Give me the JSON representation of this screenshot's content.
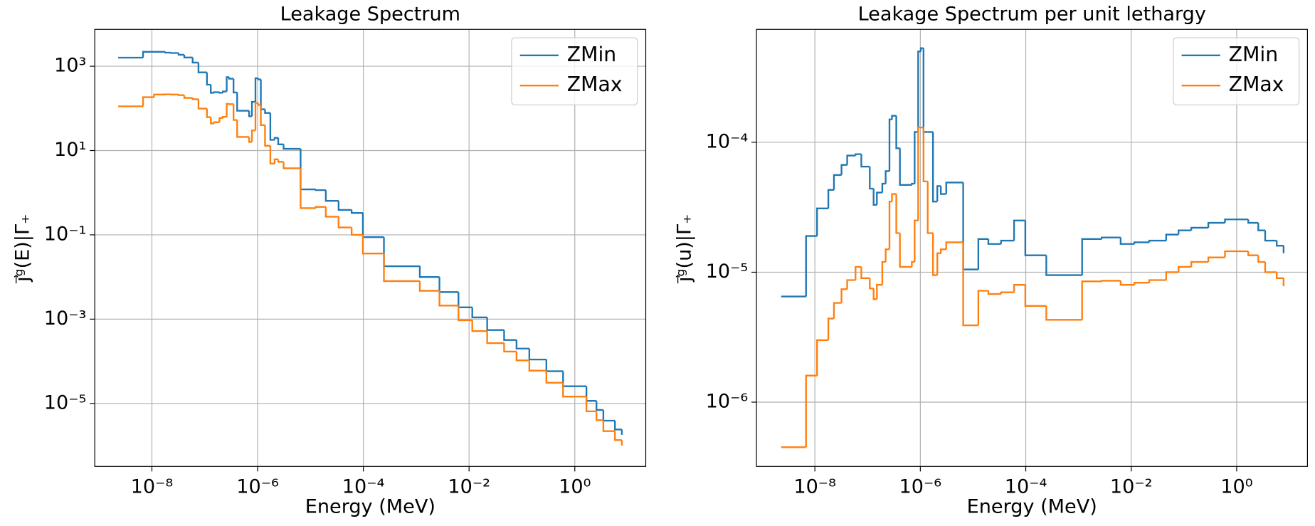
{
  "chart_data": [
    {
      "type": "step",
      "title": "Leakage Spectrum",
      "xlabel": "Energy (MeV)",
      "ylabel": "j⃗ᵍ(E)|Γ₊",
      "xscale": "log",
      "yscale": "log",
      "grid": true,
      "legend": "upper right",
      "xlim": [
        8.3e-10,
        22
      ],
      "ylim": [
        3.2e-07,
        7500
      ],
      "xticks": [
        {
          "value": 1e-08,
          "label": "10⁻⁸"
        },
        {
          "value": 1e-06,
          "label": "10⁻⁶"
        },
        {
          "value": 0.0001,
          "label": "10⁻⁴"
        },
        {
          "value": 0.01,
          "label": "10⁻²"
        },
        {
          "value": 1,
          "label": "10⁰"
        }
      ],
      "yticks": [
        {
          "value": 1e-05,
          "label": "10⁻⁵"
        },
        {
          "value": 0.001,
          "label": "10⁻³"
        },
        {
          "value": 0.1,
          "label": "10⁻¹"
        },
        {
          "value": 10,
          "label": "10¹"
        },
        {
          "value": 1000,
          "label": "10³"
        }
      ],
      "x": [
        2.3e-09,
        6.8e-09,
        1.1e-08,
        1.8e-08,
        2.3e-08,
        3.2e-08,
        4.1e-08,
        5.9e-08,
        7.6e-08,
        1.1e-07,
        1.3e-07,
        1.5e-07,
        1.9e-07,
        2.2e-07,
        2.6e-07,
        2.9e-07,
        3.5e-07,
        4.1e-07,
        6.9e-07,
        7.8e-07,
        9.1e-07,
        1.02e-06,
        1.15e-06,
        1.38e-06,
        1.74e-06,
        2.1e-06,
        2.45e-06,
        3.1e-06,
        6.5e-06,
        1.26e-05,
        1.95e-05,
        3.4e-05,
        6e-05,
        9.8e-05,
        0.000245,
        0.00117,
        0.00275,
        0.0063,
        0.0115,
        0.022,
        0.046,
        0.079,
        0.138,
        0.29,
        0.6,
        1.66,
        2.57,
        3.47,
        5.75,
        7.76
      ],
      "series": [
        {
          "name": "ZMin",
          "color": "#1f77b4",
          "values": [
            1600,
            2200,
            2200,
            2100,
            2060,
            1870,
            1610,
            1220,
            715,
            365,
            234,
            242,
            235,
            252,
            550,
            506,
            239,
            88,
            65,
            143,
            520,
            488,
            95,
            78,
            18,
            20,
            14,
            11,
            1.2,
            1.15,
            0.64,
            0.39,
            0.33,
            0.088,
            0.018,
            0.01,
            0.0044,
            0.0019,
            0.0011,
            0.00055,
            0.00032,
            0.0002,
            0.00011,
            5.8e-05,
            2.55e-05,
            1.15e-05,
            7e-06,
            3.9e-06,
            2.4e-06,
            1.8e-06
          ]
        },
        {
          "name": "ZMax",
          "color": "#ff7f0e",
          "values": [
            112,
            184,
            213,
            216,
            213,
            206,
            177,
            165,
            99,
            62,
            44,
            47,
            59,
            63,
            128,
            126,
            53,
            21,
            16,
            30,
            135,
            120,
            40,
            13,
            4.9,
            6.2,
            5.4,
            3.8,
            0.43,
            0.46,
            0.27,
            0.15,
            0.1,
            0.036,
            0.008,
            0.0047,
            0.0021,
            0.00094,
            0.00052,
            0.00027,
            0.00017,
            0.000105,
            6e-05,
            3.1e-05,
            1.45e-05,
            6.5e-06,
            4e-06,
            2.2e-06,
            1.35e-06,
            1e-06
          ]
        }
      ]
    },
    {
      "type": "step",
      "title": "Leakage Spectrum per unit lethargy",
      "xlabel": "Energy (MeV)",
      "ylabel": "j⃗ᵍ(u)|Γ₊",
      "xscale": "log",
      "yscale": "log",
      "grid": true,
      "legend": "upper right",
      "xlim": [
        7.8e-10,
        22
      ],
      "ylim": [
        3.2e-07,
        0.00074
      ],
      "xticks": [
        {
          "value": 1e-08,
          "label": "10⁻⁸"
        },
        {
          "value": 1e-06,
          "label": "10⁻⁶"
        },
        {
          "value": 0.0001,
          "label": "10⁻⁴"
        },
        {
          "value": 0.01,
          "label": "10⁻²"
        },
        {
          "value": 1,
          "label": "10⁰"
        }
      ],
      "yticks": [
        {
          "value": 1e-06,
          "label": "10⁻⁶"
        },
        {
          "value": 1e-05,
          "label": "10⁻⁵"
        },
        {
          "value": 0.0001,
          "label": "10⁻⁴"
        }
      ],
      "x": [
        2.3e-09,
        6.8e-09,
        1.1e-08,
        1.8e-08,
        2.3e-08,
        3.2e-08,
        4.1e-08,
        5.9e-08,
        7.6e-08,
        1.1e-07,
        1.3e-07,
        1.5e-07,
        1.9e-07,
        2.2e-07,
        2.6e-07,
        2.9e-07,
        3.5e-07,
        4.1e-07,
        6.9e-07,
        7.8e-07,
        9.1e-07,
        1.02e-06,
        1.15e-06,
        1.38e-06,
        1.74e-06,
        2.1e-06,
        2.45e-06,
        3.1e-06,
        6.5e-06,
        1.26e-05,
        1.95e-05,
        3.4e-05,
        6e-05,
        9.8e-05,
        0.000245,
        0.00117,
        0.00275,
        0.0063,
        0.0115,
        0.022,
        0.046,
        0.079,
        0.138,
        0.29,
        0.6,
        1.66,
        2.57,
        3.47,
        5.75,
        7.76
      ],
      "series": [
        {
          "name": "ZMin",
          "color": "#1f77b4",
          "values": [
            6.5e-06,
            1.9e-05,
            3.1e-05,
            4.3e-05,
            5.6e-05,
            6.7e-05,
            7.9e-05,
            8.1e-05,
            6.5e-05,
            4.4e-05,
            3.3e-05,
            4.1e-05,
            4.8e-05,
            6e-05,
            0.00015,
            0.00016,
            9e-05,
            4.7e-05,
            4.8e-05,
            0.00012,
            0.0005,
            0.00053,
            0.00012,
            0.00012,
            3.5e-05,
            4.6e-05,
            4e-05,
            4.9e-05,
            1.05e-05,
            1.8e-05,
            1.65e-05,
            1.75e-05,
            2.5e-05,
            1.35e-05,
            9.5e-06,
            1.8e-05,
            1.85e-05,
            1.65e-05,
            1.7e-05,
            1.75e-05,
            1.95e-05,
            2.1e-05,
            2.2e-05,
            2.4e-05,
            2.55e-05,
            2.4e-05,
            2.1e-05,
            1.75e-05,
            1.6e-05,
            1.4e-05
          ]
        },
        {
          "name": "ZMax",
          "color": "#ff7f0e",
          "values": [
            4.5e-07,
            1.6e-06,
            3e-06,
            4.4e-06,
            5.8e-06,
            7.4e-06,
            8.7e-06,
            1.1e-05,
            9e-06,
            7.5e-06,
            6.2e-06,
            8e-06,
            1.2e-05,
            1.5e-05,
            3.5e-05,
            4e-05,
            2e-05,
            1.1e-05,
            1.2e-05,
            2.5e-05,
            0.00013,
            0.00013,
            5e-05,
            2e-05,
            9.5e-06,
            1.4e-05,
            1.5e-05,
            1.7e-05,
            3.9e-06,
            7.2e-06,
            6.8e-06,
            7e-06,
            8e-06,
            5.5e-06,
            4.3e-06,
            8.5e-06,
            8.6e-06,
            8e-06,
            8.3e-06,
            8.7e-06,
            1e-05,
            1.1e-05,
            1.2e-05,
            1.3e-05,
            1.45e-05,
            1.35e-05,
            1.2e-05,
            1e-05,
            9e-06,
            7.8e-06
          ]
        }
      ]
    }
  ]
}
